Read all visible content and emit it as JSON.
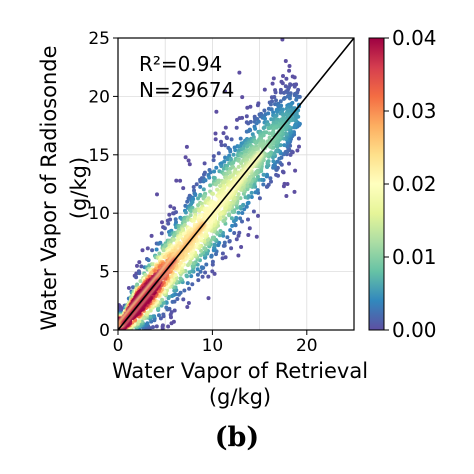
{
  "chart_data": {
    "type": "scatter",
    "title": "",
    "xlabel_line1": "Water Vapor of Retrieval",
    "xlabel_line2": "(g/kg)",
    "ylabel_line1": "Water Vapor of Radiosonde",
    "ylabel_line2": "(g/kg)",
    "xlim": [
      0,
      25
    ],
    "ylim": [
      0,
      25
    ],
    "x_ticks": [
      0,
      10,
      20
    ],
    "y_ticks": [
      0,
      5,
      10,
      15,
      20,
      25
    ],
    "grid": true,
    "annotations": {
      "r2": "R²=0.94",
      "n": "N=29674"
    },
    "reference_line": {
      "from": [
        0,
        0
      ],
      "to": [
        25,
        25
      ],
      "color": "#000000"
    },
    "colorbar": {
      "range": [
        0.0,
        0.04
      ],
      "ticks": [
        "0.00",
        "0.01",
        "0.02",
        "0.03",
        "0.04"
      ],
      "colormap": "Spectral_r"
    },
    "density_ridge": {
      "x": [
        0.5,
        2,
        4,
        6,
        8,
        10,
        12,
        14,
        16,
        18,
        19
      ],
      "y": [
        0.5,
        2.1,
        4.0,
        6.0,
        8.0,
        10.1,
        12.0,
        14.0,
        16.0,
        17.8,
        18.5
      ],
      "spread_y": [
        0.5,
        1.2,
        1.7,
        2.0,
        2.3,
        2.5,
        2.5,
        2.4,
        2.3,
        2.0,
        1.5
      ]
    },
    "point_count": 29674
  },
  "figure": {
    "panel_label": "(b)"
  },
  "colors": {
    "points": "#5e4fa2",
    "spectral_stops": [
      "#5e4fa2",
      "#3288bd",
      "#66c2a5",
      "#abdda4",
      "#e6f598",
      "#ffffbf",
      "#fee08b",
      "#fdae61",
      "#f46d43",
      "#d53e4f",
      "#9e0142"
    ]
  }
}
